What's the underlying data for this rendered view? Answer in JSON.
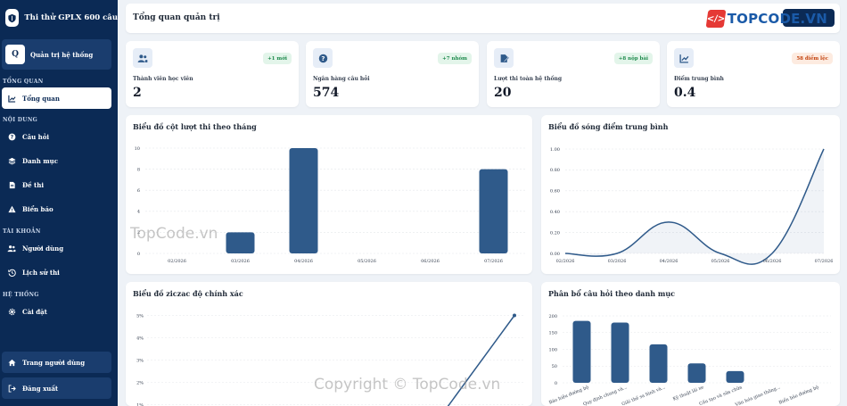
{
  "sidebar": {
    "brand": "Thi thử GPLX 600 câu",
    "admin_initial": "Q",
    "admin_name": "Quản trị hệ thống",
    "sections": {
      "overview": "TỔNG QUAN",
      "content": "NỘI DUNG",
      "account": "TÀI KHOẢN",
      "system": "HỆ THỐNG"
    },
    "items": {
      "dashboard": "Tổng quan",
      "questions": "Câu hỏi",
      "categories": "Danh mục",
      "exams": "Đề thi",
      "signs": "Biển báo",
      "users": "Người dùng",
      "history": "Lịch sử thi",
      "settings": "Cài đặt",
      "user_page": "Trang người dùng",
      "logout": "Đăng xuất"
    }
  },
  "header": {
    "title": "Tổng quan quản trị",
    "logo_text": "TOPCODE.VN"
  },
  "stats": [
    {
      "label": "Thành viên học viên",
      "value": "2",
      "badge": "+1 mới",
      "badge_tone": "green",
      "icon": "users-icon"
    },
    {
      "label": "Ngân hàng câu hỏi",
      "value": "574",
      "badge": "+7 nhóm",
      "badge_tone": "green",
      "icon": "question-circle-icon"
    },
    {
      "label": "Lượt thi toàn hệ thống",
      "value": "20",
      "badge": "+8 nộp bài",
      "badge_tone": "green",
      "icon": "file-edit-icon"
    },
    {
      "label": "Điểm trung bình",
      "value": "0.4",
      "badge": "58 điểm lệc",
      "badge_tone": "orange",
      "icon": "chart-line-icon"
    }
  ],
  "colors": {
    "sidebar": "#0b2a55",
    "accent": "#2f5a8a",
    "badge_green": "#1e8a4c",
    "badge_orange": "#c2410c"
  },
  "chart_data": [
    {
      "type": "bar",
      "title": "Biểu đồ cột lượt thi theo tháng",
      "categories": [
        "02/2026",
        "03/2026",
        "04/2026",
        "05/2026",
        "06/2026",
        "07/2026"
      ],
      "values": [
        0,
        2,
        10,
        0,
        0,
        8
      ],
      "ylim": [
        0,
        10
      ],
      "yticks": [
        "0",
        "2",
        "4",
        "6",
        "8",
        "10"
      ],
      "grid": true
    },
    {
      "type": "line",
      "title": "Biểu đồ sóng điểm trung bình",
      "categories": [
        "02/2026",
        "03/2026",
        "04/2026",
        "05/2026",
        "06/2026",
        "07/2026"
      ],
      "values": [
        0,
        0,
        0.3,
        0,
        0,
        1
      ],
      "ylim": [
        0,
        1
      ],
      "yticks": [
        "0.00",
        "0.20",
        "0.40",
        "0.60",
        "0.80",
        "1.00"
      ],
      "grid": true
    },
    {
      "type": "line",
      "title": "Biểu đồ ziczac độ chính xác",
      "yticks": [
        "1%",
        "2%",
        "3%",
        "4%",
        "5%"
      ],
      "ylim": [
        0.5,
        5.3
      ],
      "values": [
        0.5,
        0.5,
        0.5,
        0.75,
        0.5,
        5
      ],
      "grid": true
    },
    {
      "type": "bar",
      "title": "Phân bổ câu hỏi theo danh mục",
      "categories": [
        "Báo hiệu đường bộ",
        "Quy định chung và...",
        "Giải thế sa hình và...",
        "Kỹ thuật lái xe",
        "Cấu tạo và sửa chữa",
        "Văn hóa giao thông...",
        "Biển báo đường bộ"
      ],
      "values": [
        185,
        180,
        115,
        58,
        35,
        0,
        0
      ],
      "ylim": [
        0,
        200
      ],
      "yticks": [
        "0",
        "50",
        "100",
        "150",
        "200"
      ],
      "grid": true
    }
  ],
  "watermarks": {
    "primary": "TopCode.vn",
    "copyright": "Copyright © TopCode.vn"
  }
}
